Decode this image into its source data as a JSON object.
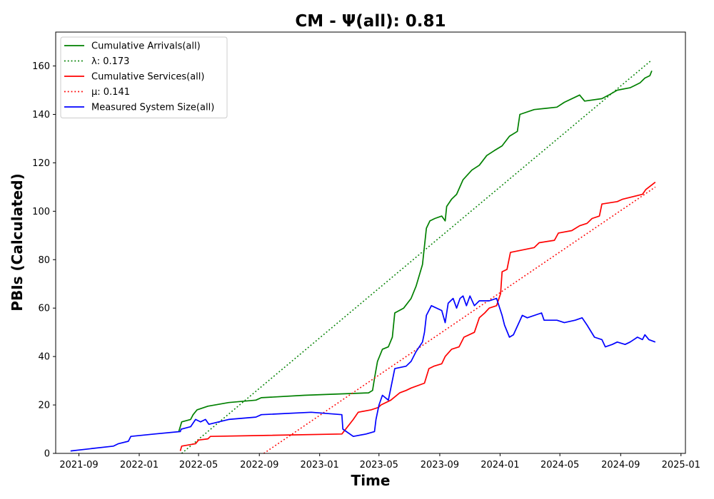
{
  "chart_data": {
    "type": "line",
    "title": "CM -  Ψ(all): 0.81",
    "xlabel": "Time",
    "ylabel": "PBIs (Calculated)",
    "xlim": [
      "2021-07-16",
      "2025-01-10"
    ],
    "ylim": [
      0,
      174
    ],
    "x_ticks": [
      "2021-09",
      "2022-01",
      "2022-05",
      "2022-09",
      "2023-01",
      "2023-05",
      "2023-09",
      "2024-01",
      "2024-05",
      "2024-09",
      "2025-01"
    ],
    "y_ticks": [
      0,
      20,
      40,
      60,
      80,
      100,
      120,
      140,
      160
    ],
    "grid": false,
    "legend": "top-left",
    "series": [
      {
        "name": "Cumulative Arrivals(all)",
        "color": "#008000",
        "style": "solid",
        "points": [
          [
            "2022-03-22",
            9
          ],
          [
            "2022-03-28",
            13
          ],
          [
            "2022-04-15",
            14
          ],
          [
            "2022-04-20",
            16
          ],
          [
            "2022-04-28",
            18
          ],
          [
            "2022-05-20",
            19.5
          ],
          [
            "2022-07-01",
            21
          ],
          [
            "2022-08-25",
            22
          ],
          [
            "2022-09-05",
            23
          ],
          [
            "2022-12-01",
            24
          ],
          [
            "2023-04-10",
            25
          ],
          [
            "2023-04-18",
            26
          ],
          [
            "2023-04-22",
            31
          ],
          [
            "2023-04-28",
            38
          ],
          [
            "2023-05-08",
            43
          ],
          [
            "2023-05-20",
            44
          ],
          [
            "2023-05-28",
            48
          ],
          [
            "2023-06-02",
            58
          ],
          [
            "2023-06-20",
            60
          ],
          [
            "2023-07-05",
            64
          ],
          [
            "2023-07-15",
            69
          ],
          [
            "2023-07-28",
            78
          ],
          [
            "2023-08-05",
            93
          ],
          [
            "2023-08-12",
            96
          ],
          [
            "2023-08-22",
            97
          ],
          [
            "2023-09-05",
            98
          ],
          [
            "2023-09-12",
            96
          ],
          [
            "2023-09-15",
            102
          ],
          [
            "2023-09-25",
            105
          ],
          [
            "2023-10-05",
            107
          ],
          [
            "2023-10-18",
            113
          ],
          [
            "2023-11-05",
            117
          ],
          [
            "2023-11-20",
            119
          ],
          [
            "2023-12-05",
            123
          ],
          [
            "2023-12-20",
            125
          ],
          [
            "2024-01-05",
            127
          ],
          [
            "2024-01-20",
            131
          ],
          [
            "2024-02-05",
            133
          ],
          [
            "2024-02-10",
            140
          ],
          [
            "2024-03-10",
            142
          ],
          [
            "2024-04-25",
            143
          ],
          [
            "2024-05-10",
            145
          ],
          [
            "2024-06-10",
            148
          ],
          [
            "2024-06-20",
            145.5
          ],
          [
            "2024-07-25",
            146.5
          ],
          [
            "2024-08-08",
            148
          ],
          [
            "2024-08-25",
            150
          ],
          [
            "2024-09-20",
            151
          ],
          [
            "2024-10-10",
            153
          ],
          [
            "2024-10-20",
            155
          ],
          [
            "2024-10-30",
            156
          ],
          [
            "2024-11-03",
            158
          ]
        ]
      },
      {
        "name": "λ: 0.173",
        "color": "#008000",
        "style": "dotted",
        "points": [
          [
            "2022-03-28",
            0
          ],
          [
            "2024-11-03",
            162.5
          ]
        ]
      },
      {
        "name": "Cumulative Services(all)",
        "color": "#ff0000",
        "style": "solid",
        "points": [
          [
            "2022-03-25",
            1
          ],
          [
            "2022-03-28",
            3
          ],
          [
            "2022-04-25",
            4
          ],
          [
            "2022-05-01",
            5.5
          ],
          [
            "2022-05-20",
            6
          ],
          [
            "2022-05-25",
            7
          ],
          [
            "2023-02-15",
            8
          ],
          [
            "2023-03-10",
            14
          ],
          [
            "2023-03-20",
            17
          ],
          [
            "2023-04-15",
            18
          ],
          [
            "2023-04-30",
            19
          ],
          [
            "2023-05-05",
            20
          ],
          [
            "2023-05-25",
            22
          ],
          [
            "2023-06-12",
            25
          ],
          [
            "2023-06-25",
            26
          ],
          [
            "2023-07-05",
            27
          ],
          [
            "2023-08-01",
            29
          ],
          [
            "2023-08-10",
            35
          ],
          [
            "2023-08-20",
            36
          ],
          [
            "2023-09-05",
            37
          ],
          [
            "2023-09-12",
            40
          ],
          [
            "2023-09-25",
            43
          ],
          [
            "2023-10-10",
            44
          ],
          [
            "2023-10-20",
            48
          ],
          [
            "2023-11-10",
            50
          ],
          [
            "2023-11-20",
            56
          ],
          [
            "2023-12-01",
            58
          ],
          [
            "2023-12-10",
            60
          ],
          [
            "2023-12-25",
            61
          ],
          [
            "2024-01-02",
            66
          ],
          [
            "2024-01-05",
            75
          ],
          [
            "2024-01-15",
            76
          ],
          [
            "2024-01-22",
            83
          ],
          [
            "2024-03-10",
            85
          ],
          [
            "2024-03-20",
            87
          ],
          [
            "2024-04-20",
            88
          ],
          [
            "2024-04-28",
            91
          ],
          [
            "2024-05-25",
            92
          ],
          [
            "2024-06-10",
            94
          ],
          [
            "2024-06-25",
            95
          ],
          [
            "2024-07-05",
            97
          ],
          [
            "2024-07-20",
            98
          ],
          [
            "2024-07-25",
            103
          ],
          [
            "2024-08-25",
            104
          ],
          [
            "2024-09-05",
            105
          ],
          [
            "2024-10-15",
            107
          ],
          [
            "2024-10-22",
            109
          ],
          [
            "2024-11-10",
            112
          ]
        ]
      },
      {
        "name": "μ: 0.141",
        "color": "#ff0000",
        "style": "dotted",
        "points": [
          [
            "2022-09-10",
            0
          ],
          [
            "2024-11-10",
            110
          ]
        ]
      },
      {
        "name": "Measured System Size(all)",
        "color": "#0000ff",
        "style": "solid",
        "points": [
          [
            "2021-08-15",
            1
          ],
          [
            "2021-11-10",
            3
          ],
          [
            "2021-11-20",
            4
          ],
          [
            "2021-12-10",
            5
          ],
          [
            "2021-12-15",
            7
          ],
          [
            "2022-02-01",
            8
          ],
          [
            "2022-03-25",
            9
          ],
          [
            "2022-03-27",
            10
          ],
          [
            "2022-04-15",
            11
          ],
          [
            "2022-04-25",
            14
          ],
          [
            "2022-05-05",
            13
          ],
          [
            "2022-05-15",
            14
          ],
          [
            "2022-05-22",
            12
          ],
          [
            "2022-07-01",
            14
          ],
          [
            "2022-08-25",
            15
          ],
          [
            "2022-09-05",
            16
          ],
          [
            "2022-12-15",
            17
          ],
          [
            "2023-02-15",
            16
          ],
          [
            "2023-02-17",
            10
          ],
          [
            "2023-03-10",
            7
          ],
          [
            "2023-04-05",
            8
          ],
          [
            "2023-04-22",
            9
          ],
          [
            "2023-04-25",
            14
          ],
          [
            "2023-05-01",
            20
          ],
          [
            "2023-05-08",
            24
          ],
          [
            "2023-05-20",
            22
          ],
          [
            "2023-05-25",
            27
          ],
          [
            "2023-06-02",
            35
          ],
          [
            "2023-06-25",
            36
          ],
          [
            "2023-07-05",
            38
          ],
          [
            "2023-07-15",
            42
          ],
          [
            "2023-07-28",
            46
          ],
          [
            "2023-08-01",
            50
          ],
          [
            "2023-08-05",
            57
          ],
          [
            "2023-08-15",
            61
          ],
          [
            "2023-09-05",
            59
          ],
          [
            "2023-09-12",
            54
          ],
          [
            "2023-09-18",
            62
          ],
          [
            "2023-09-28",
            64
          ],
          [
            "2023-10-05",
            60
          ],
          [
            "2023-10-12",
            64
          ],
          [
            "2023-10-18",
            65
          ],
          [
            "2023-10-25",
            61
          ],
          [
            "2023-11-01",
            65
          ],
          [
            "2023-11-10",
            61
          ],
          [
            "2023-11-20",
            63
          ],
          [
            "2023-12-10",
            63
          ],
          [
            "2023-12-25",
            64
          ],
          [
            "2024-01-05",
            57
          ],
          [
            "2024-01-10",
            53
          ],
          [
            "2024-01-20",
            48
          ],
          [
            "2024-01-28",
            49
          ],
          [
            "2024-02-15",
            57
          ],
          [
            "2024-02-25",
            56
          ],
          [
            "2024-03-25",
            58
          ],
          [
            "2024-03-30",
            55
          ],
          [
            "2024-04-25",
            55
          ],
          [
            "2024-05-10",
            54
          ],
          [
            "2024-06-01",
            55
          ],
          [
            "2024-06-15",
            56
          ],
          [
            "2024-06-25",
            53
          ],
          [
            "2024-07-10",
            48
          ],
          [
            "2024-07-25",
            47
          ],
          [
            "2024-08-01",
            44
          ],
          [
            "2024-08-15",
            45
          ],
          [
            "2024-08-25",
            46
          ],
          [
            "2024-09-10",
            45
          ],
          [
            "2024-09-20",
            46
          ],
          [
            "2024-10-05",
            48
          ],
          [
            "2024-10-15",
            47
          ],
          [
            "2024-10-20",
            49
          ],
          [
            "2024-10-28",
            47
          ],
          [
            "2024-11-10",
            46
          ]
        ]
      }
    ]
  }
}
